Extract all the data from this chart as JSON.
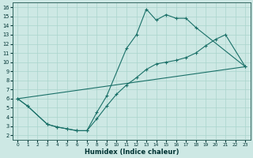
{
  "background_color": "#cde8e4",
  "grid_color": "#aad4cc",
  "line_color": "#1a7068",
  "xlabel": "Humidex (Indice chaleur)",
  "xlim": [
    -0.5,
    23.5
  ],
  "ylim": [
    1.5,
    16.5
  ],
  "xticks": [
    0,
    1,
    2,
    3,
    4,
    5,
    6,
    7,
    8,
    9,
    10,
    11,
    12,
    13,
    14,
    15,
    16,
    17,
    18,
    19,
    20,
    21,
    22,
    23
  ],
  "yticks": [
    2,
    3,
    4,
    5,
    6,
    7,
    8,
    9,
    10,
    11,
    12,
    13,
    14,
    15,
    16
  ],
  "curve1_x": [
    0,
    1,
    3,
    4,
    5,
    6,
    7,
    8,
    9,
    11,
    12,
    13,
    14,
    15,
    16,
    17,
    18,
    23
  ],
  "curve1_y": [
    6.0,
    5.2,
    3.2,
    2.9,
    2.7,
    2.5,
    2.5,
    4.5,
    6.3,
    11.5,
    13.0,
    15.8,
    14.6,
    15.2,
    14.8,
    14.8,
    13.8,
    9.5
  ],
  "curve2_x": [
    0,
    23
  ],
  "curve2_y": [
    6.0,
    9.5
  ],
  "curve3_x": [
    0,
    1,
    3,
    4,
    5,
    6,
    7,
    8,
    9,
    10,
    11,
    12,
    13,
    14,
    15,
    16,
    17,
    18,
    19,
    20,
    21,
    23
  ],
  "curve3_y": [
    6.0,
    5.2,
    3.2,
    2.9,
    2.7,
    2.5,
    2.5,
    3.8,
    5.2,
    6.5,
    7.5,
    8.3,
    9.2,
    9.8,
    10.0,
    10.2,
    10.5,
    11.0,
    11.8,
    12.5,
    13.0,
    9.5
  ]
}
